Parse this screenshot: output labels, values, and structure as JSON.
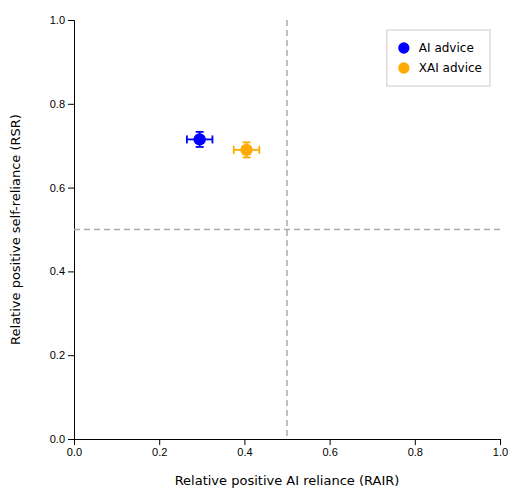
{
  "chart_data": {
    "type": "scatter",
    "xlabel": "Relative positive AI reliance (RAIR)",
    "ylabel": "Relative positive self-reliance (RSR)",
    "series": [
      {
        "name": "AI advice",
        "color": "#0000ff",
        "marker": "circle",
        "x": [
          0.295
        ],
        "values": [
          0.715
        ],
        "x_error": [
          0.03
        ],
        "y_error": [
          0.018
        ]
      },
      {
        "name": "XAI advice",
        "color": "#ffaa00",
        "marker": "circle",
        "x": [
          0.405
        ],
        "values": [
          0.69
        ],
        "x_error": [
          0.03
        ],
        "y_error": [
          0.018
        ]
      }
    ],
    "vlines": [
      {
        "value": 0.5,
        "color": "#aaaaaa",
        "line_style": "dashed"
      }
    ],
    "hlines": [
      {
        "value": 0.5,
        "color": "#aaaaaa",
        "line_style": "dashed"
      }
    ],
    "xlim": [
      0,
      1
    ],
    "ylim": [
      0,
      1
    ],
    "xticks": [
      {
        "value": 0,
        "label": "0.0"
      },
      0.2,
      0.4,
      0.6,
      0.8,
      {
        "value": 1,
        "label": "1.0"
      }
    ],
    "yticks": [
      {
        "value": 0,
        "label": "0.0"
      },
      0.2,
      0.4,
      0.6,
      0.8,
      {
        "value": 1,
        "label": "1.0"
      }
    ],
    "grid": false,
    "legend": "upper right"
  }
}
